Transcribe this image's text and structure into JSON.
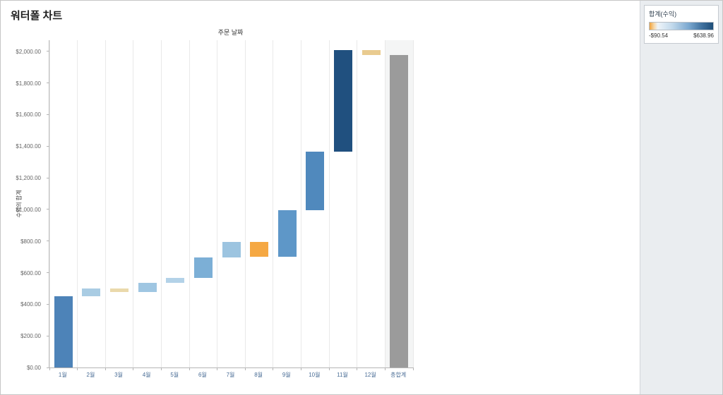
{
  "page": {
    "title": "워터폴 차트"
  },
  "chart_data": {
    "type": "waterfall",
    "title": "주문 날짜",
    "ylabel": "수익의 합계",
    "categories": [
      "1월",
      "2월",
      "3월",
      "4월",
      "5월",
      "6월",
      "7월",
      "8월",
      "9월",
      "10월",
      "11월",
      "12월",
      "총합계"
    ],
    "values": [
      450,
      48,
      -22,
      58,
      33,
      128,
      98,
      -90.54,
      292,
      372,
      638.96,
      -29
    ],
    "grand_total": 1976.42,
    "bar_colors": [
      "#4d83b8",
      "#a9cce3",
      "#ead9ab",
      "#9fc6e2",
      "#b3d2e8",
      "#7cafd6",
      "#9cc4e0",
      "#f5a843",
      "#5e97c8",
      "#5089bd",
      "#20507f",
      "#e9cb90"
    ],
    "total_color": "#9b9b9b",
    "ylim": [
      0,
      2070
    ],
    "yticks": [
      0,
      200,
      400,
      600,
      800,
      1000,
      1200,
      1400,
      1600,
      1800,
      2000
    ],
    "ytick_labels": [
      "$0.00",
      "$200.00",
      "$400.00",
      "$600.00",
      "$800.00",
      "$1,000.00",
      "$1,200.00",
      "$1,400.00",
      "$1,600.00",
      "$1,800.00",
      "$2,000.00"
    ],
    "grid": "vertical-only",
    "legend_position": "top-right-panel"
  },
  "legend": {
    "title": "합계(수익)",
    "min_label": "-$90.54",
    "max_label": "$638.96",
    "gradient_stops": [
      "#f0a23a 0%",
      "#f6d7a8 7%",
      "#eef4f9 13%",
      "#c3daec 35%",
      "#7aa7cf 62%",
      "#41729f 82%",
      "#1f4e79 100%"
    ],
    "negative_color": "#f0a23a",
    "positive_color": "#1f4e79"
  }
}
